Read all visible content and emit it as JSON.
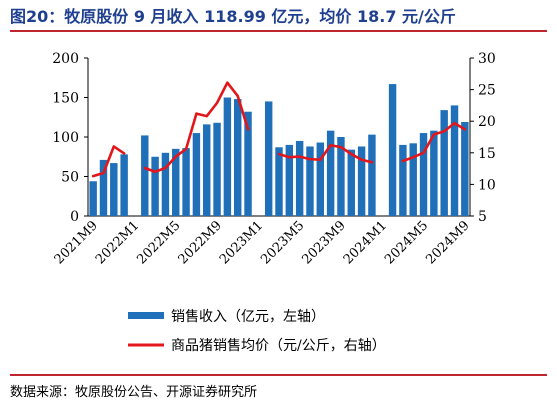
{
  "figure": {
    "title": "图20：牧原股份 9 月收入 118.99 亿元，均价 18.7 元/公斤",
    "source": "数据来源：牧原股份公告、开源证券研究所"
  },
  "colors": {
    "bar": "#1f70b8",
    "line": "#e2161b",
    "title": "#1f3f8f",
    "rule": "#c0262d"
  },
  "chart_data": {
    "type": "bar",
    "title": "",
    "xlabel": "",
    "ylabel": "",
    "ylim": [
      0,
      200
    ],
    "y2lim": [
      5,
      30
    ],
    "y_ticks": [
      0,
      50,
      100,
      150,
      200
    ],
    "y2_ticks": [
      5,
      10,
      15,
      20,
      25,
      30
    ],
    "categories": [
      "2021M9",
      "2021M10",
      "2021M11",
      "2021M12",
      "2022M1",
      "2022M2",
      "2022M3",
      "2022M4",
      "2022M5",
      "2022M6",
      "2022M7",
      "2022M8",
      "2022M9",
      "2022M10",
      "2022M11",
      "2022M12",
      "2023M1",
      "2023M2",
      "2023M3",
      "2023M4",
      "2023M5",
      "2023M6",
      "2023M7",
      "2023M8",
      "2023M9",
      "2023M10",
      "2023M11",
      "2023M12",
      "2024M1",
      "2024M2",
      "2024M3",
      "2024M4",
      "2024M5",
      "2024M6",
      "2024M7",
      "2024M8",
      "2024M9"
    ],
    "x_tick_labels": [
      "2021M9",
      "2022M1",
      "2022M5",
      "2022M9",
      "2023M1",
      "2023M5",
      "2023M9",
      "2024M1",
      "2024M5",
      "2024M9"
    ],
    "legend_position": "bottom",
    "grid": false,
    "series": [
      {
        "name": "销售收入（亿元，左轴）",
        "type": "bar",
        "axis": "left",
        "values": [
          44,
          71,
          67,
          78,
          null,
          102,
          75,
          80,
          85,
          86,
          105,
          116,
          118,
          150,
          148,
          132,
          null,
          145,
          87,
          90,
          95,
          88,
          93,
          108,
          100,
          84,
          88,
          103,
          null,
          167,
          90,
          92,
          105,
          108,
          134,
          140,
          119
        ]
      },
      {
        "name": "商品猪销售均价（元/公斤，右轴）",
        "type": "line",
        "axis": "right",
        "values": [
          11.3,
          11.8,
          16.0,
          14.9,
          null,
          12.6,
          12.0,
          12.6,
          14.4,
          15.6,
          21.2,
          20.8,
          22.9,
          26.1,
          24.0,
          18.7,
          null,
          null,
          14.8,
          14.3,
          14.4,
          14.0,
          13.9,
          16.2,
          15.9,
          14.8,
          13.9,
          13.5,
          null,
          null,
          13.7,
          14.3,
          15.0,
          17.9,
          18.4,
          19.7,
          18.7
        ]
      }
    ]
  }
}
